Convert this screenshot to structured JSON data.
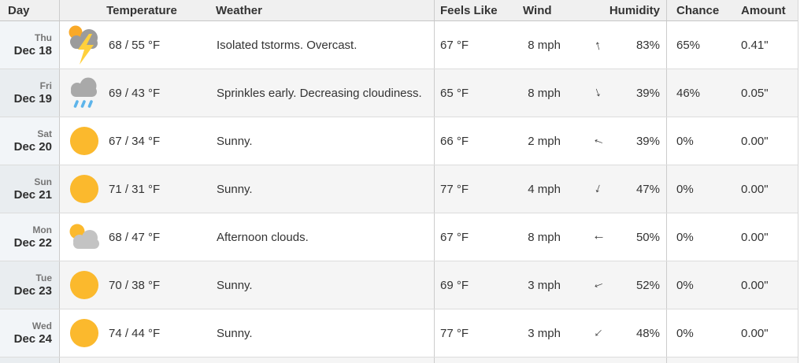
{
  "columns": {
    "day": "Day",
    "temperature": "Temperature",
    "weather": "Weather",
    "feels_like": "Feels Like",
    "wind": "Wind",
    "humidity": "Humidity",
    "chance": "Chance",
    "amount": "Amount"
  },
  "glyphs": {
    "wind_arrow": "↑"
  },
  "colors": {
    "sun": "#fbb92d",
    "sun_peek": "#f9a928",
    "cloud_dark": "#9b9b9b",
    "cloud_medium": "#a9a9a9",
    "cloud_light": "#c3c3c3",
    "rain": "#5db4ea",
    "lightning": "#ffd03c"
  },
  "rows": [
    {
      "day_name": "Thu",
      "date": "Dec 18",
      "icon": "tstorm",
      "temp": "68 / 55 °F",
      "weather": "Isolated tstorms. Overcast.",
      "feels_like": "67 °F",
      "wind_speed": "8 mph",
      "wind_dir_deg": 345,
      "humidity": "83%",
      "chance": "65%",
      "amount": "0.41\""
    },
    {
      "day_name": "Fri",
      "date": "Dec 19",
      "icon": "sprinkles",
      "temp": "69 / 43 °F",
      "weather": "Sprinkles early. Decreasing cloudiness.",
      "feels_like": "65 °F",
      "wind_speed": "8 mph",
      "wind_dir_deg": 160,
      "humidity": "39%",
      "chance": "46%",
      "amount": "0.05\""
    },
    {
      "day_name": "Sat",
      "date": "Dec 20",
      "icon": "sunny",
      "temp": "67 / 34 °F",
      "weather": "Sunny.",
      "feels_like": "66 °F",
      "wind_speed": "2 mph",
      "wind_dir_deg": 290,
      "humidity": "39%",
      "chance": "0%",
      "amount": "0.00\""
    },
    {
      "day_name": "Sun",
      "date": "Dec 21",
      "icon": "sunny",
      "temp": "71 / 31 °F",
      "weather": "Sunny.",
      "feels_like": "77 °F",
      "wind_speed": "4 mph",
      "wind_dir_deg": 200,
      "humidity": "47%",
      "chance": "0%",
      "amount": "0.00\""
    },
    {
      "day_name": "Mon",
      "date": "Dec 22",
      "icon": "sun-cloud",
      "temp": "68 / 47 °F",
      "weather": "Afternoon clouds.",
      "feels_like": "67 °F",
      "wind_speed": "8 mph",
      "wind_dir_deg": 270,
      "humidity": "50%",
      "chance": "0%",
      "amount": "0.00\""
    },
    {
      "day_name": "Tue",
      "date": "Dec 23",
      "icon": "sunny",
      "temp": "70 / 38 °F",
      "weather": "Sunny.",
      "feels_like": "69 °F",
      "wind_speed": "3 mph",
      "wind_dir_deg": 250,
      "humidity": "52%",
      "chance": "0%",
      "amount": "0.00\""
    },
    {
      "day_name": "Wed",
      "date": "Dec 24",
      "icon": "sunny",
      "temp": "74 / 44 °F",
      "weather": "Sunny.",
      "feels_like": "77 °F",
      "wind_speed": "3 mph",
      "wind_dir_deg": 225,
      "humidity": "48%",
      "chance": "0%",
      "amount": "0.00\""
    }
  ]
}
